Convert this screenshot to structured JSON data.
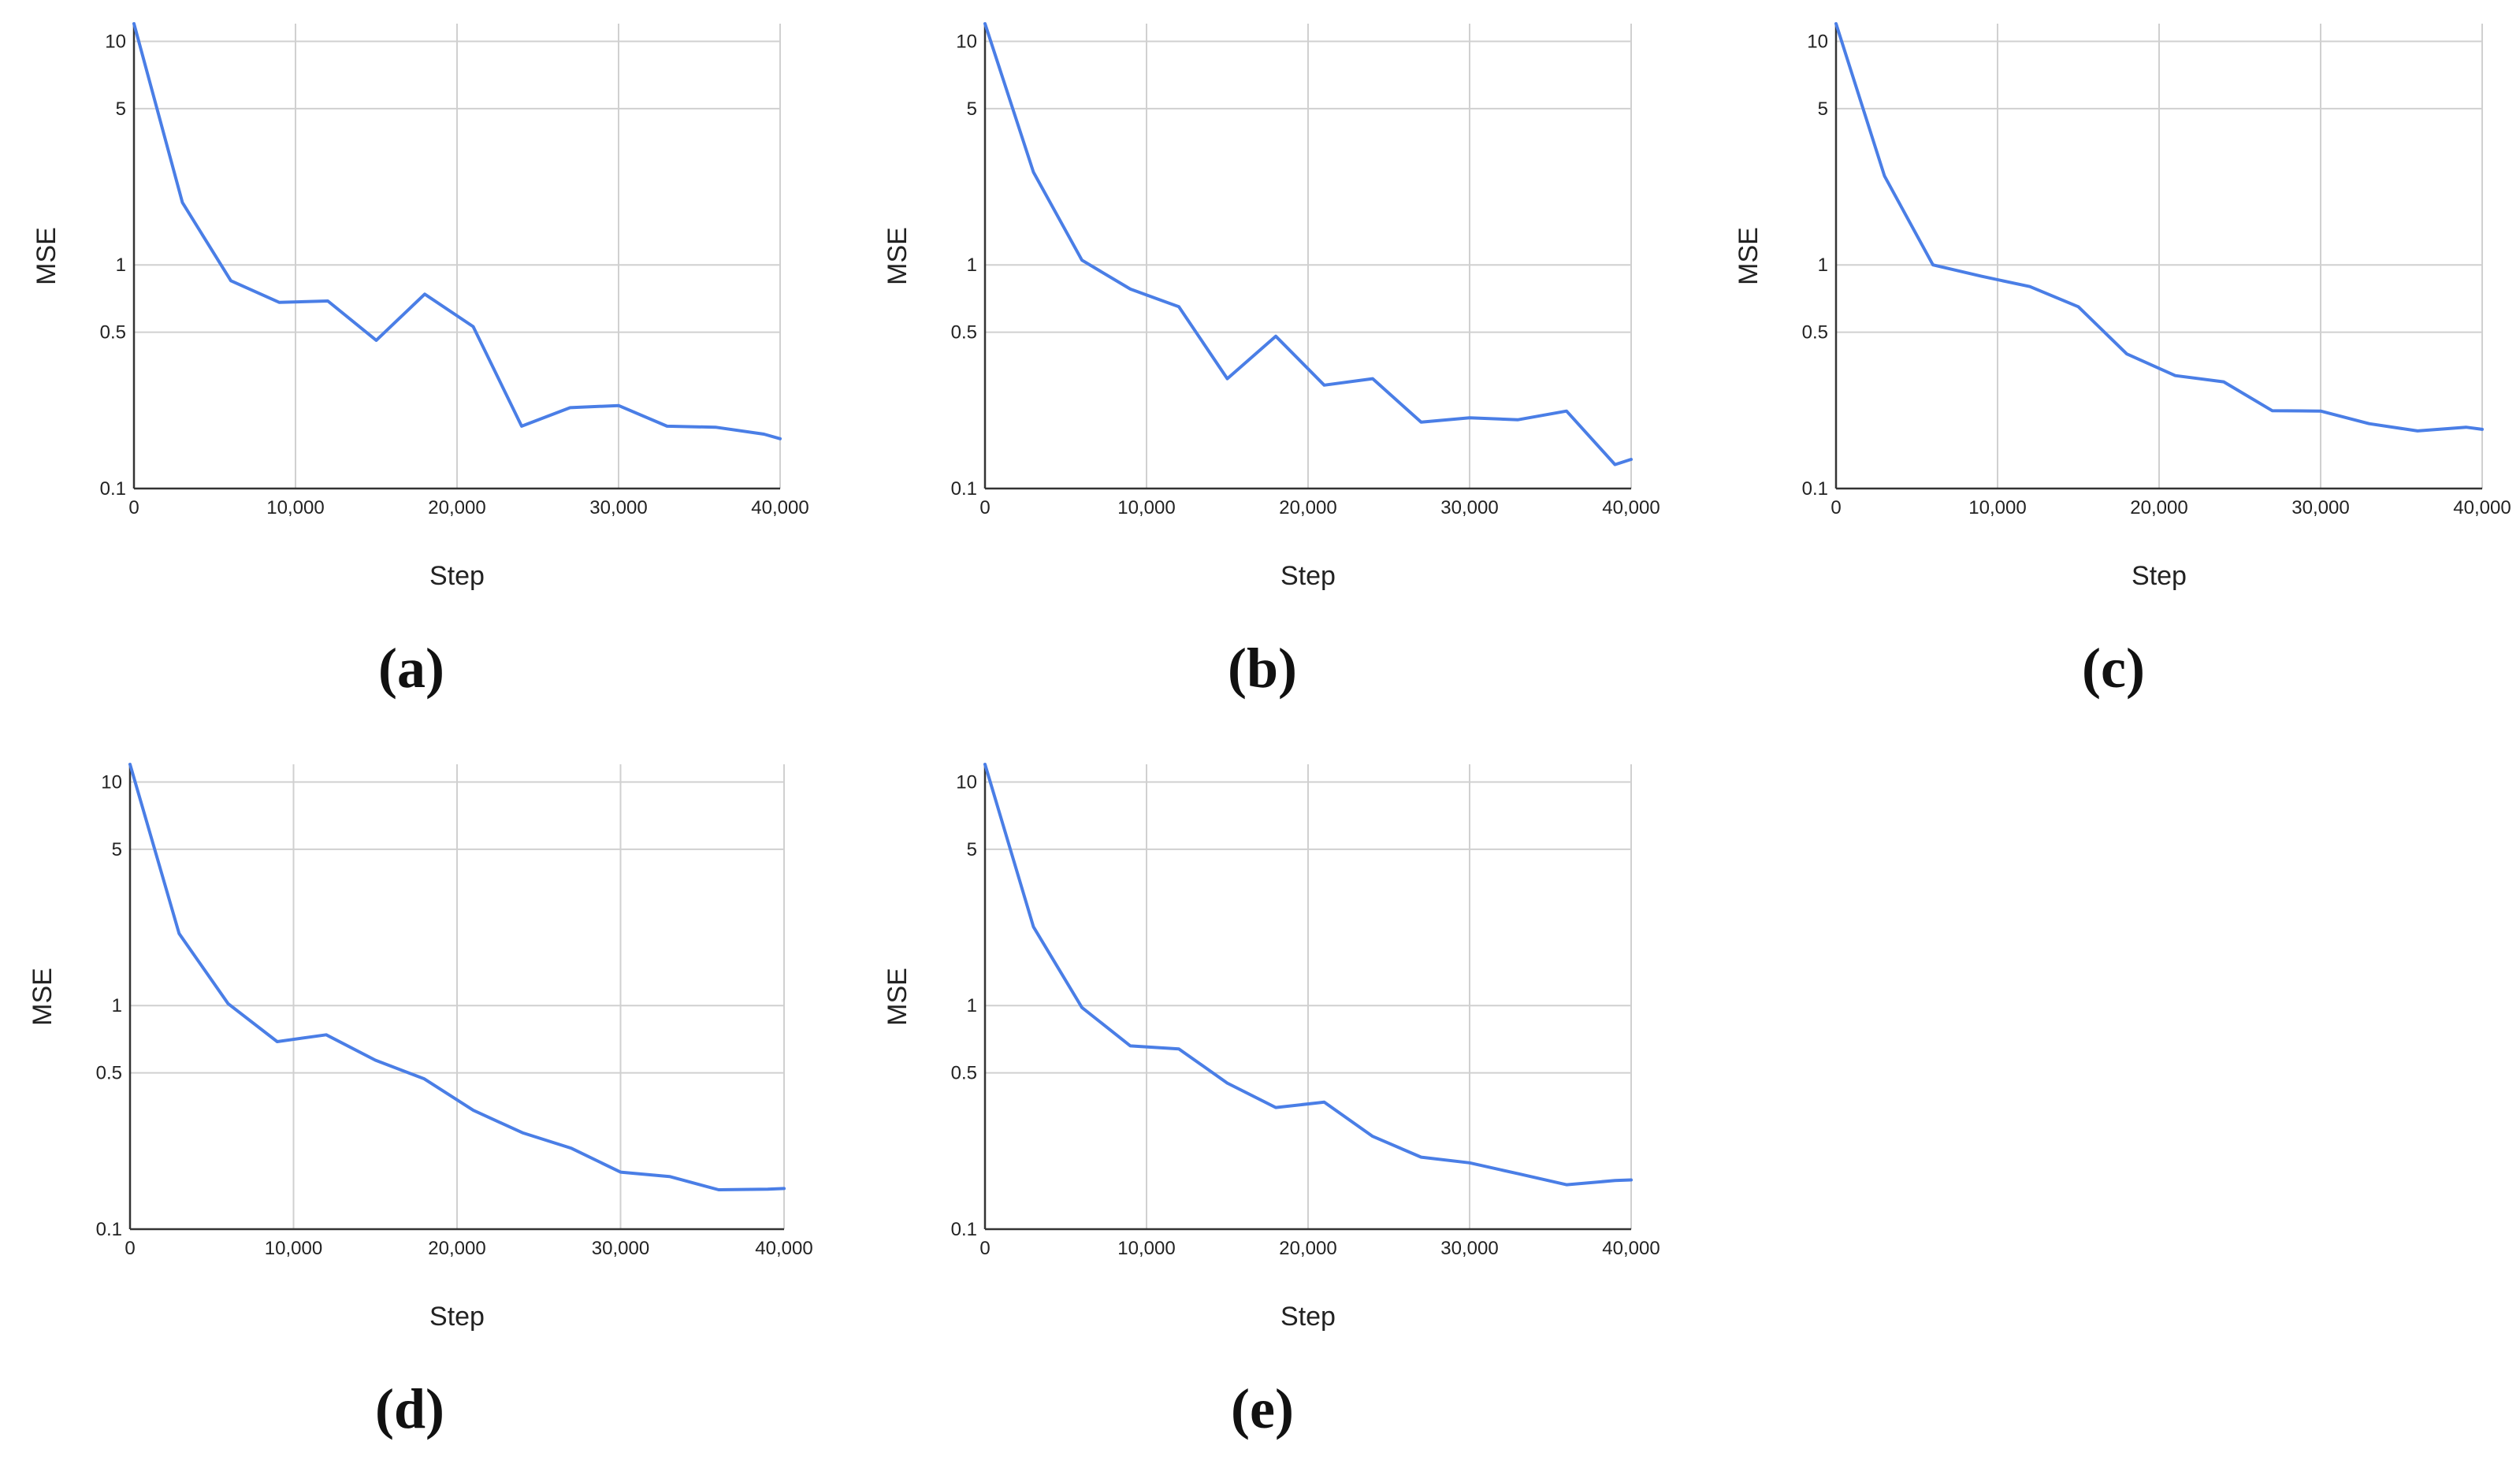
{
  "colors": {
    "series": "#4a7ee6",
    "grid": "#d0d0d0",
    "axis": "#333333"
  },
  "chart_data": [
    {
      "type": "line",
      "panel_label": "(a)",
      "xlabel": "Step",
      "ylabel": "MSE",
      "y_scale": "log",
      "x_ticks": [
        "0",
        "10,000",
        "20,000",
        "30,000",
        "40,000"
      ],
      "y_ticks": [
        "0.1",
        "0.5",
        "1",
        "5",
        "10"
      ],
      "xlim": [
        0,
        40000
      ],
      "ylim": [
        0.1,
        12
      ],
      "grid": true,
      "x": [
        0,
        3000,
        6000,
        9000,
        12000,
        15000,
        18000,
        21000,
        24000,
        27000,
        30000,
        33000,
        36000,
        39000,
        40000
      ],
      "values": [
        12,
        1.9,
        0.85,
        0.68,
        0.69,
        0.46,
        0.74,
        0.53,
        0.19,
        0.23,
        0.235,
        0.19,
        0.188,
        0.175,
        0.167
      ]
    },
    {
      "type": "line",
      "panel_label": "(b)",
      "xlabel": "Step",
      "ylabel": "MSE",
      "y_scale": "log",
      "x_ticks": [
        "0",
        "10,000",
        "20,000",
        "30,000",
        "40,000"
      ],
      "y_ticks": [
        "0.1",
        "0.5",
        "1",
        "5",
        "10"
      ],
      "xlim": [
        0,
        40000
      ],
      "ylim": [
        0.1,
        12
      ],
      "grid": true,
      "x": [
        0,
        3000,
        6000,
        9000,
        12000,
        15000,
        18000,
        21000,
        24000,
        27000,
        30000,
        33000,
        36000,
        39000,
        40000
      ],
      "values": [
        12,
        2.6,
        1.05,
        0.78,
        0.65,
        0.31,
        0.48,
        0.29,
        0.31,
        0.198,
        0.207,
        0.203,
        0.222,
        0.128,
        0.135
      ]
    },
    {
      "type": "line",
      "panel_label": "(c)",
      "xlabel": "Step",
      "ylabel": "MSE",
      "y_scale": "log",
      "x_ticks": [
        "0",
        "10,000",
        "20,000",
        "30,000",
        "40,000"
      ],
      "y_ticks": [
        "0.1",
        "0.5",
        "1",
        "5",
        "10"
      ],
      "xlim": [
        0,
        40000
      ],
      "ylim": [
        0.1,
        12
      ],
      "grid": true,
      "x": [
        0,
        3000,
        6000,
        9000,
        12000,
        15000,
        18000,
        21000,
        24000,
        27000,
        30000,
        33000,
        36000,
        39000,
        40000
      ],
      "values": [
        12,
        2.5,
        1.0,
        0.89,
        0.8,
        0.65,
        0.4,
        0.32,
        0.3,
        0.223,
        0.222,
        0.195,
        0.181,
        0.188,
        0.184
      ]
    },
    {
      "type": "line",
      "panel_label": "(d)",
      "xlabel": "Step",
      "ylabel": "MSE",
      "y_scale": "log",
      "x_ticks": [
        "0",
        "10,000",
        "20,000",
        "30,000",
        "40,000"
      ],
      "y_ticks": [
        "0.1",
        "0.5",
        "1",
        "5",
        "10"
      ],
      "xlim": [
        0,
        40000
      ],
      "ylim": [
        0.1,
        12
      ],
      "grid": true,
      "x": [
        0,
        3000,
        6000,
        9000,
        12000,
        15000,
        18000,
        21000,
        24000,
        27000,
        30000,
        33000,
        36000,
        39000,
        40000
      ],
      "values": [
        12,
        2.1,
        1.02,
        0.69,
        0.74,
        0.57,
        0.47,
        0.34,
        0.27,
        0.23,
        0.18,
        0.172,
        0.15,
        0.151,
        0.152
      ]
    },
    {
      "type": "line",
      "panel_label": "(e)",
      "xlabel": "Step",
      "ylabel": "MSE",
      "y_scale": "log",
      "x_ticks": [
        "0",
        "10,000",
        "20,000",
        "30,000",
        "40,000"
      ],
      "y_ticks": [
        "0.1",
        "0.5",
        "1",
        "5",
        "10"
      ],
      "xlim": [
        0,
        40000
      ],
      "ylim": [
        0.1,
        12
      ],
      "grid": true,
      "x": [
        0,
        3000,
        6000,
        9000,
        12000,
        15000,
        18000,
        21000,
        24000,
        27000,
        30000,
        33000,
        36000,
        39000,
        40000
      ],
      "values": [
        12,
        2.25,
        0.98,
        0.66,
        0.64,
        0.45,
        0.35,
        0.37,
        0.26,
        0.21,
        0.198,
        0.177,
        0.158,
        0.165,
        0.166
      ]
    }
  ]
}
